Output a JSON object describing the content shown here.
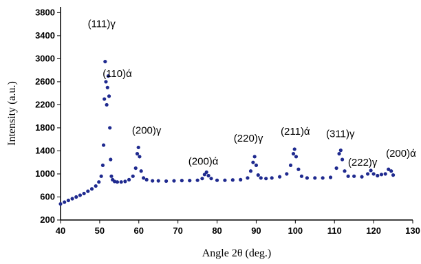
{
  "chart_data": {
    "type": "scatter",
    "title": "",
    "xlabel": "Angle 2θ (deg.)",
    "ylabel": "Intensity (a.u.)",
    "xlim": [
      40,
      130
    ],
    "ylim": [
      200,
      3900
    ],
    "x_ticks": [
      40,
      50,
      60,
      70,
      80,
      90,
      100,
      110,
      120,
      130
    ],
    "y_ticks": [
      200,
      600,
      1000,
      1400,
      1800,
      2200,
      2600,
      3000,
      3400,
      3800
    ],
    "grid": false,
    "marker_color": "#1f2a8f",
    "series": [
      {
        "x": [
          40,
          41,
          42,
          43,
          44,
          45,
          46,
          47,
          48,
          49,
          49.8,
          50.4,
          50.8,
          51.0,
          51.2,
          51.4,
          51.6,
          51.8,
          52.0,
          52.2,
          52.4,
          52.6,
          52.8,
          53.0,
          53.3,
          53.8,
          54.5,
          55.5,
          56.5,
          57.5,
          58.5,
          59.2,
          59.6,
          59.9,
          60.2,
          60.6,
          61.2,
          62.0,
          63.5,
          65,
          67,
          69,
          71,
          73,
          75,
          76.2,
          76.8,
          77.3,
          77.8,
          78.5,
          80,
          82,
          84,
          86,
          87.8,
          88.6,
          89.2,
          89.6,
          90.0,
          90.5,
          91.2,
          92.5,
          94,
          96,
          97.8,
          98.8,
          99.5,
          99.8,
          100.2,
          100.8,
          101.6,
          103,
          105,
          107,
          109,
          110.5,
          111.2,
          111.6,
          112.0,
          112.6,
          113.5,
          115,
          117,
          118.5,
          119.3,
          120,
          121,
          122,
          123,
          123.8,
          124.5,
          125
        ],
        "y": [
          480,
          510,
          540,
          570,
          600,
          630,
          660,
          700,
          740,
          790,
          860,
          960,
          1150,
          1500,
          2300,
          2950,
          2600,
          2200,
          2500,
          2700,
          2350,
          1800,
          1250,
          960,
          900,
          870,
          860,
          860,
          870,
          900,
          960,
          1100,
          1350,
          1460,
          1300,
          1050,
          930,
          900,
          880,
          880,
          875,
          880,
          885,
          885,
          890,
          920,
          990,
          1030,
          970,
          920,
          890,
          890,
          895,
          900,
          930,
          1050,
          1200,
          1300,
          1150,
          980,
          930,
          920,
          930,
          950,
          1000,
          1150,
          1350,
          1430,
          1300,
          1080,
          960,
          930,
          930,
          930,
          940,
          1100,
          1350,
          1410,
          1250,
          1050,
          960,
          960,
          950,
          1000,
          1060,
          1000,
          970,
          990,
          1000,
          1080,
          1050,
          980
        ]
      }
    ],
    "annotations": [
      {
        "text": "(111)γ",
        "x": 50.5,
        "y": 3550
      },
      {
        "text": "(110)ά",
        "x": 54.5,
        "y": 2680
      },
      {
        "text": "(200)γ",
        "x": 62.0,
        "y": 1700
      },
      {
        "text": "(200)ά",
        "x": 76.5,
        "y": 1160
      },
      {
        "text": "(220)γ",
        "x": 88.0,
        "y": 1560
      },
      {
        "text": "(211)ά",
        "x": 100.0,
        "y": 1680
      },
      {
        "text": "(311)γ",
        "x": 111.5,
        "y": 1640
      },
      {
        "text": "(222)γ",
        "x": 117.2,
        "y": 1140
      },
      {
        "text": "(200)ά",
        "x": 127.0,
        "y": 1300
      }
    ]
  }
}
